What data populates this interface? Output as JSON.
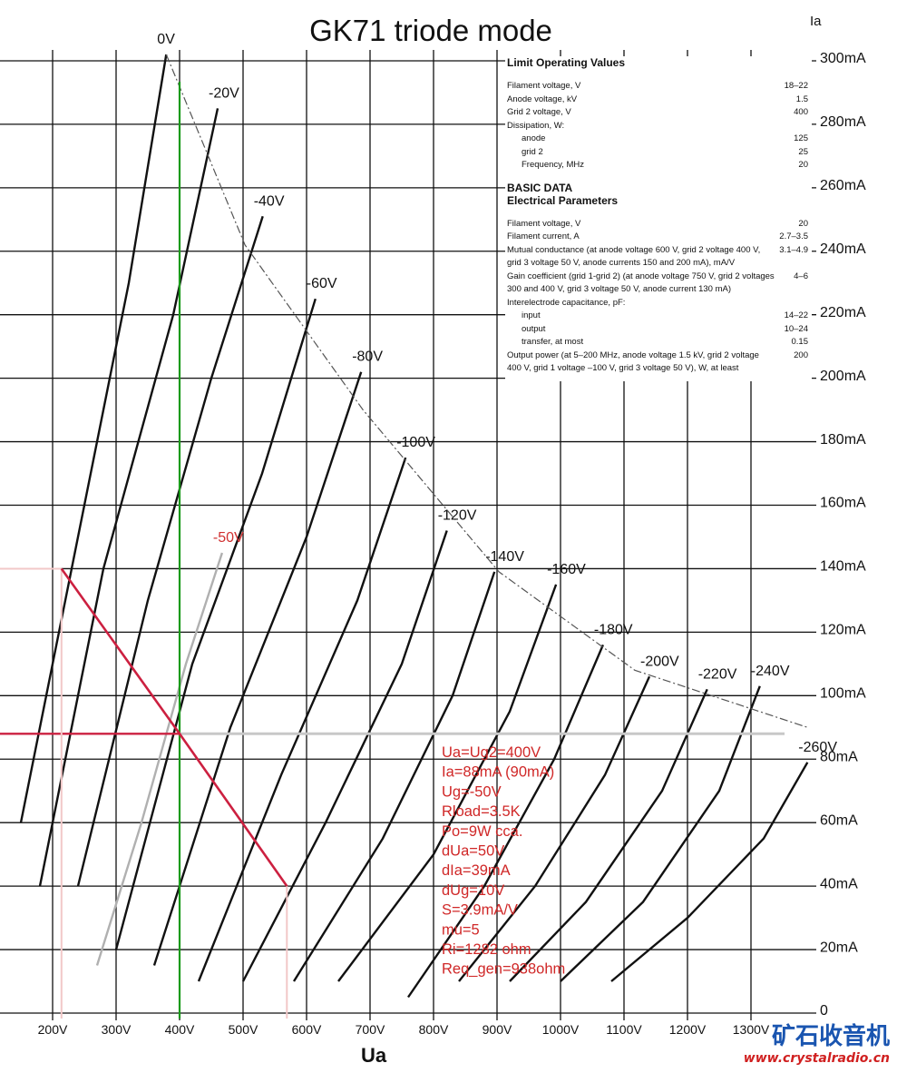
{
  "chart_data": {
    "type": "line",
    "title": "GK71 triode mode",
    "x_label": "Ua",
    "y_label": "Ia",
    "xlim": [
      120,
      1400
    ],
    "ylim": [
      0,
      310
    ],
    "xticks": [
      {
        "value": 200,
        "label": "200V"
      },
      {
        "value": 300,
        "label": "300V"
      },
      {
        "value": 400,
        "label": "400V"
      },
      {
        "value": 500,
        "label": "500V"
      },
      {
        "value": 600,
        "label": "600V"
      },
      {
        "value": 700,
        "label": "700V"
      },
      {
        "value": 800,
        "label": "800V"
      },
      {
        "value": 900,
        "label": "900V"
      },
      {
        "value": 1000,
        "label": "1000V"
      },
      {
        "value": 1100,
        "label": "1100V"
      },
      {
        "value": 1200,
        "label": "1200V"
      },
      {
        "value": 1300,
        "label": "1300V"
      }
    ],
    "yticks": [
      0,
      {
        "value": 20,
        "label": "20mA"
      },
      {
        "value": 40,
        "label": "40mA"
      },
      {
        "value": 60,
        "label": "60mA"
      },
      {
        "value": 80,
        "label": "80mA"
      },
      {
        "value": 100,
        "label": "100mA"
      },
      {
        "value": 120,
        "label": "120mA"
      },
      {
        "value": 140,
        "label": "140mA"
      },
      {
        "value": 160,
        "label": "160mA"
      },
      {
        "value": 180,
        "label": "180mA"
      },
      {
        "value": 200,
        "label": "200mA"
      },
      {
        "value": 220,
        "label": "220mA"
      },
      {
        "value": 240,
        "label": "240mA"
      },
      {
        "value": 260,
        "label": "260mA"
      },
      {
        "value": 280,
        "label": "280mA"
      },
      {
        "value": 300,
        "label": "300mA"
      }
    ],
    "grid": true,
    "series": [
      {
        "name": "0V",
        "color": "#111111",
        "x": [
          150,
          250,
          320,
          379
        ],
        "values": [
          60,
          160,
          230,
          302
        ]
      },
      {
        "name": "-20V",
        "color": "#111111",
        "x": [
          180,
          280,
          390,
          460
        ],
        "values": [
          40,
          140,
          220,
          285
        ]
      },
      {
        "name": "-40V",
        "color": "#111111",
        "x": [
          240,
          350,
          450,
          531
        ],
        "values": [
          40,
          130,
          200,
          251
        ]
      },
      {
        "name": "-60V",
        "color": "#111111",
        "x": [
          300,
          420,
          530,
          614
        ],
        "values": [
          20,
          110,
          170,
          225
        ]
      },
      {
        "name": "-80V",
        "color": "#111111",
        "x": [
          360,
          480,
          600,
          686
        ],
        "values": [
          15,
          90,
          150,
          202
        ]
      },
      {
        "name": "-100V",
        "color": "#111111",
        "x": [
          430,
          560,
          680,
          756
        ],
        "values": [
          10,
          75,
          130,
          175
        ]
      },
      {
        "name": "-120V",
        "color": "#111111",
        "x": [
          500,
          630,
          750,
          821
        ],
        "values": [
          10,
          60,
          110,
          152
        ]
      },
      {
        "name": "-140V",
        "color": "#111111",
        "x": [
          580,
          720,
          830,
          896
        ],
        "values": [
          10,
          55,
          100,
          139
        ]
      },
      {
        "name": "-160V",
        "color": "#111111",
        "x": [
          650,
          800,
          920,
          993
        ],
        "values": [
          10,
          50,
          95,
          135
        ]
      },
      {
        "name": "-180V",
        "color": "#111111",
        "x": [
          760,
          880,
          990,
          1067
        ],
        "values": [
          5,
          40,
          80,
          116
        ]
      },
      {
        "name": "-200V",
        "color": "#111111",
        "x": [
          840,
          960,
          1070,
          1140
        ],
        "values": [
          10,
          40,
          75,
          106
        ]
      },
      {
        "name": "-220V",
        "color": "#111111",
        "x": [
          920,
          1040,
          1160,
          1231
        ],
        "values": [
          10,
          35,
          70,
          102
        ]
      },
      {
        "name": "-240V",
        "color": "#111111",
        "x": [
          1000,
          1130,
          1250,
          1314
        ],
        "values": [
          10,
          35,
          70,
          103
        ]
      },
      {
        "name": "-260V",
        "color": "#111111",
        "x": [
          1080,
          1200,
          1320,
          1389
        ],
        "values": [
          10,
          30,
          55,
          79
        ]
      },
      {
        "name": "-50V",
        "color": "#b0b0b0",
        "label_color": "#d03030",
        "x": [
          270,
          340,
          410,
          467
        ],
        "values": [
          15,
          60,
          110,
          145
        ]
      },
      {
        "color": "#555555",
        "dashed": true,
        "x": [
          379,
          503,
          689,
          903,
          1117,
          1389
        ],
        "values": [
          302,
          242,
          190,
          139,
          108,
          90
        ]
      }
    ],
    "load_line": {
      "color": "#cc2040",
      "x": [
        214,
        400,
        569
      ],
      "values": [
        140,
        88,
        40
      ]
    },
    "operating_point": {
      "x": 400,
      "y": 88
    },
    "annotations": [
      "Ua=Ug2=400V",
      "Ia=88mA  (90mA)",
      "Ug=-50V",
      "Rload=3.5K",
      "Po=9W cca.",
      "dUa=50V",
      "dIa=39mA",
      "dUg=10V",
      "S=3.9mA/V",
      "mu=5",
      "Ri=1282 ohm",
      "Req_gen=938ohm"
    ]
  },
  "datasheet": {
    "limit_title": "Limit Operating Values",
    "limit_rows": [
      [
        "Filament voltage, V",
        "18–22"
      ],
      [
        "Anode voltage, kV",
        "1.5"
      ],
      [
        "Grid 2 voltage, V",
        "400"
      ],
      [
        "Dissipation, W:",
        ""
      ],
      [
        "anode",
        "125"
      ],
      [
        "grid 2",
        "25"
      ],
      [
        "Frequency, MHz",
        "20"
      ]
    ],
    "basic_title": "BASIC DATA",
    "basic_subtitle": "Electrical Parameters",
    "basic_rows": [
      [
        "Filament voltage, V",
        "20"
      ],
      [
        "Filament current, A",
        "2.7–3.5"
      ],
      [
        "Mutual conductance (at anode voltage 600 V, grid 2 voltage 400 V, grid 3 voltage 50 V, anode currents 150 and 200 mA), mA/V",
        "3.1–4.9"
      ],
      [
        "Gain coefficient (grid 1-grid 2) (at anode voltage 750 V, grid 2 voltages 300 and 400 V, grid 3 voltage 50 V, anode current 130 mA)",
        "4–6"
      ],
      [
        "Interelectrode capacitance, pF:",
        ""
      ],
      [
        "input",
        "14–22"
      ],
      [
        "output",
        "10–24"
      ],
      [
        "transfer, at most",
        "0.15"
      ],
      [
        "Output power (at 5–200 MHz, anode voltage 1.5 kV, grid 2 voltage 400 V, grid 1 voltage –100 V, grid 3 voltage 50 V), W, at least",
        "200"
      ]
    ]
  },
  "watermark": {
    "name": "矿石收音机",
    "url": "www.crystalradio.cn"
  }
}
